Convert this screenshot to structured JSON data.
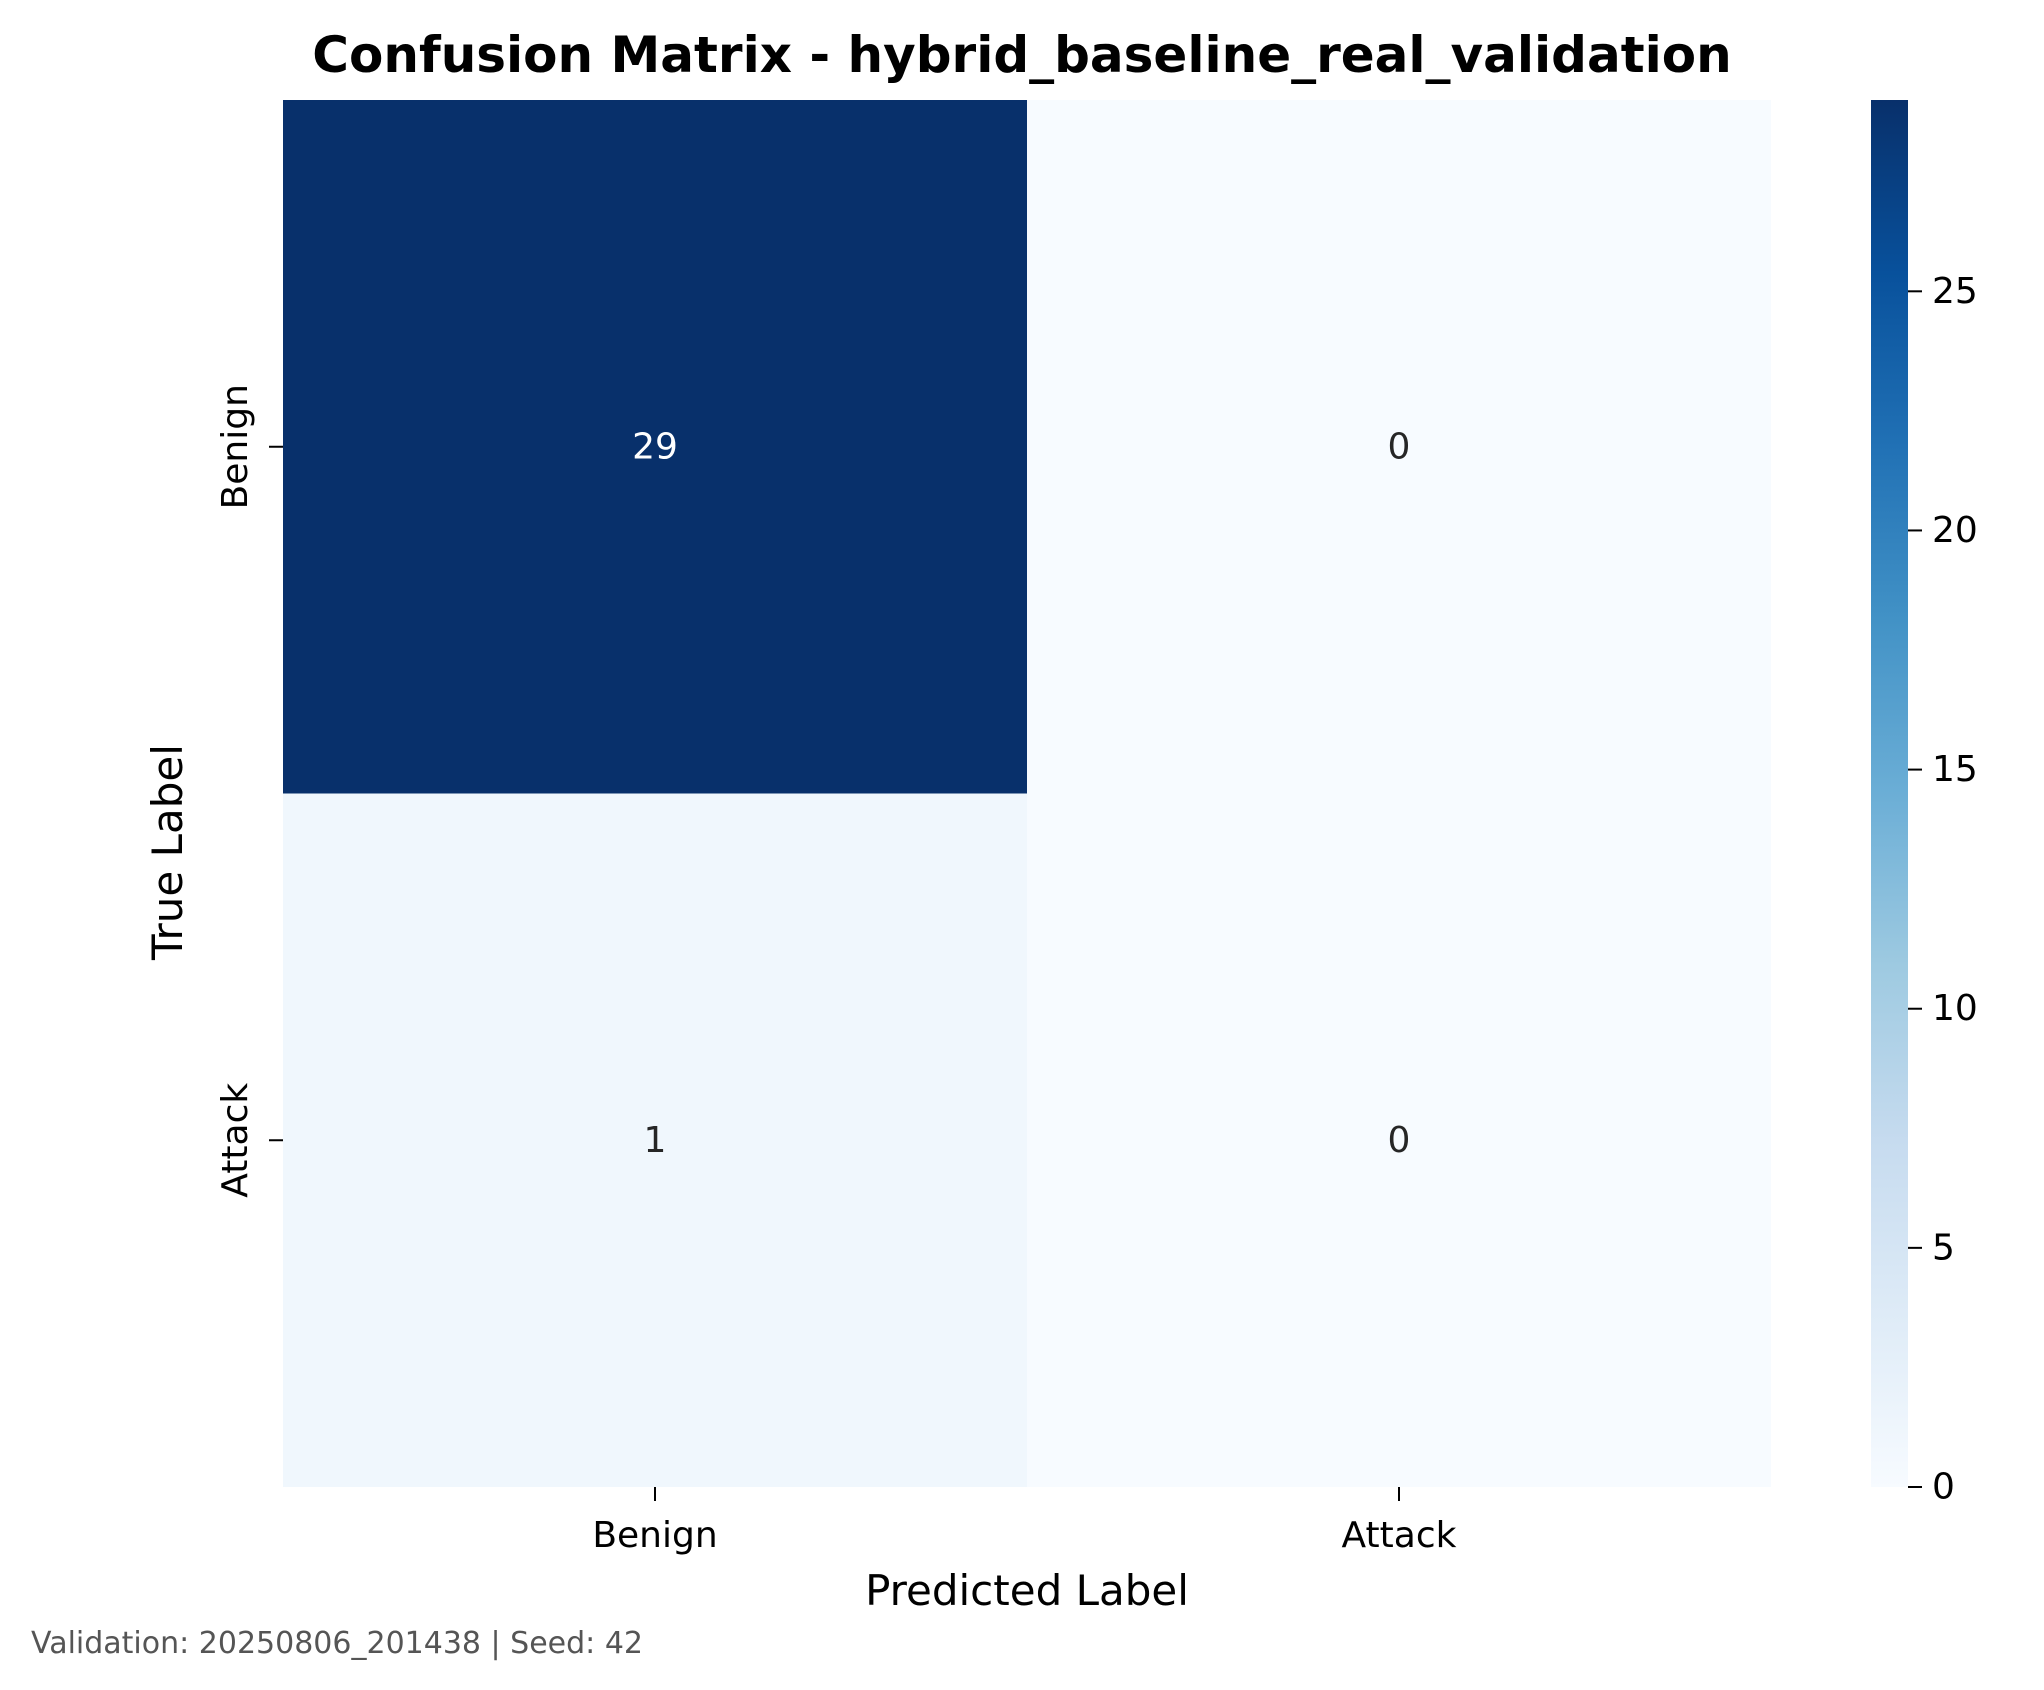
{
  "chart_data": {
    "type": "heatmap",
    "title": "Confusion Matrix - hybrid_baseline_real_validation",
    "xlabel": "Predicted Label",
    "ylabel": "True Label",
    "x_categories": [
      "Benign",
      "Attack"
    ],
    "y_categories": [
      "Benign",
      "Attack"
    ],
    "values": [
      [
        29,
        0
      ],
      [
        1,
        0
      ]
    ],
    "colormap": "Blues",
    "colorbar": {
      "range": [
        0,
        29
      ],
      "ticks": [
        0,
        5,
        10,
        15,
        20,
        25
      ],
      "tick_labels": [
        "0",
        "5",
        "10",
        "15",
        "20",
        "25"
      ]
    },
    "annotation_colors": {
      "dark_cell_text": "#ffffff",
      "light_cell_text": "#262626"
    },
    "grid": false,
    "legend": "none"
  },
  "footer": {
    "text": "Validation: 20250806_201438 | Seed: 42"
  }
}
